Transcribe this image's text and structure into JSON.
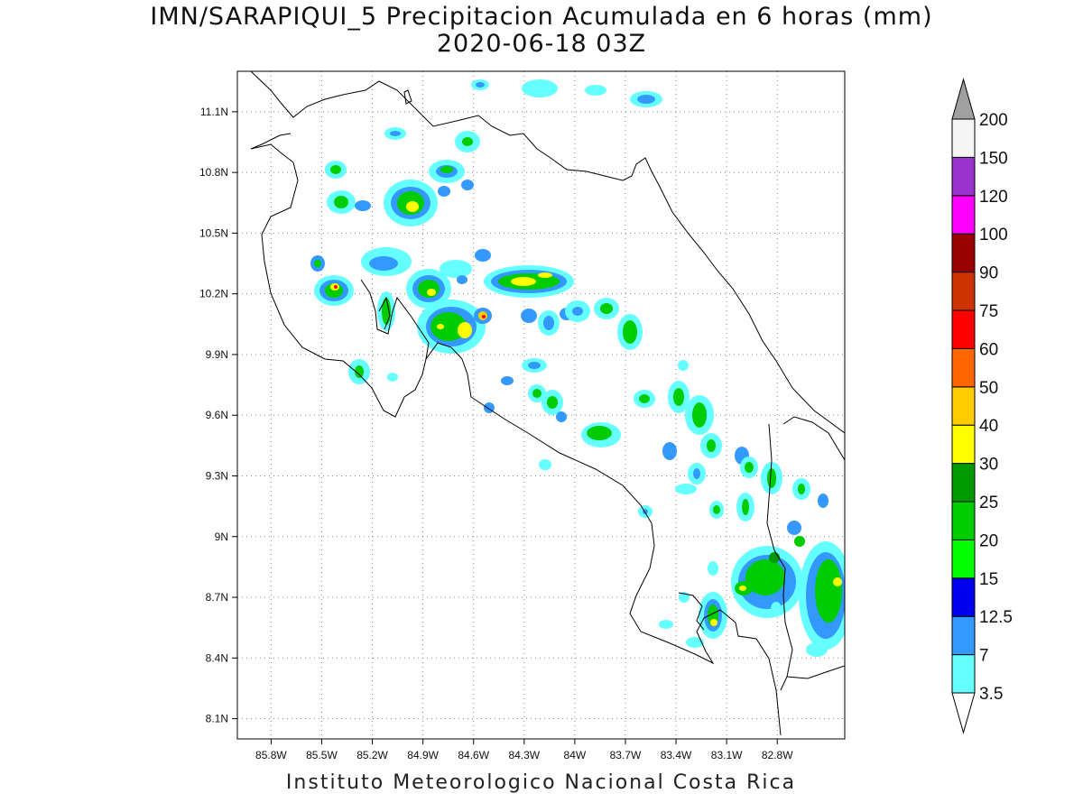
{
  "title_line1": "IMN/SARAPIQUI_5 Precipitacion Acumulada en 6 horas (mm)",
  "title_line2": "2020-06-18 03Z",
  "footer": "Instituto Meteorologico Nacional Costa Rica",
  "map": {
    "lon_range": [
      -86.0,
      -82.4
    ],
    "lat_range": [
      8.0,
      11.3
    ],
    "lat_ticks": [
      "11.1N",
      "10.8N",
      "10.5N",
      "10.2N",
      "9.9N",
      "9.6N",
      "9.3N",
      "9N",
      "8.7N",
      "8.4N",
      "8.1N"
    ],
    "lat_values": [
      11.1,
      10.8,
      10.5,
      10.2,
      9.9,
      9.6,
      9.3,
      9.0,
      8.7,
      8.4,
      8.1
    ],
    "lon_ticks": [
      "85.8W",
      "85.5W",
      "85.2W",
      "84.9W",
      "84.6W",
      "84.3W",
      "84W",
      "83.7W",
      "83.4W",
      "83.1W",
      "82.8W"
    ],
    "lon_values": [
      -85.8,
      -85.5,
      -85.2,
      -84.9,
      -84.6,
      -84.3,
      -84.0,
      -83.7,
      -83.4,
      -83.1,
      -82.8
    ],
    "gridlines": "dotted"
  },
  "colorbar": {
    "labels": [
      "3.5",
      "7",
      "12.5",
      "15",
      "20",
      "25",
      "30",
      "40",
      "50",
      "60",
      "75",
      "90",
      "100",
      "120",
      "150",
      "200"
    ],
    "colors": [
      "#66ffff",
      "#3399ff",
      "#0000ee",
      "#00ff00",
      "#00cc00",
      "#009900",
      "#ffff00",
      "#ffcc00",
      "#ff6600",
      "#ff0000",
      "#cc3300",
      "#990000",
      "#ff00ff",
      "#9933cc",
      "#f5f5f5"
    ],
    "top_arrow_color": "#a0a0a0",
    "bottom_arrow_color": "#ffffff"
  }
}
